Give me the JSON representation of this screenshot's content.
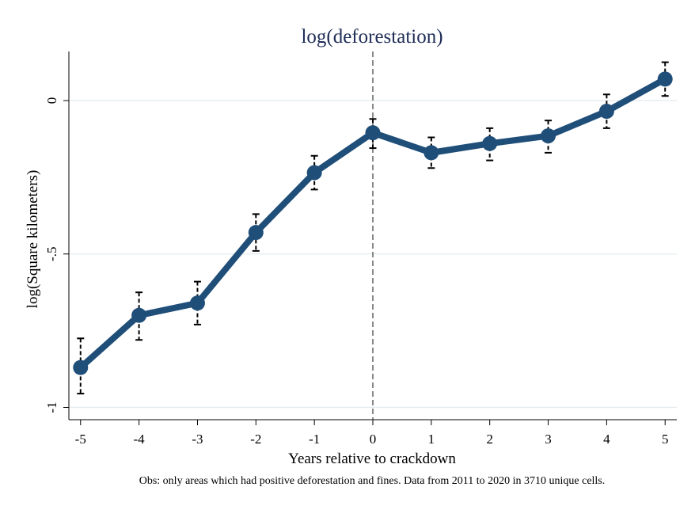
{
  "chart_data": {
    "type": "line",
    "title": "log(deforestation)",
    "xlabel": "Years relative to crackdown",
    "ylabel": "log(Square kilometers)",
    "note": "Obs: only areas which had positive deforestation and fines. Data from 2011 to 2020 in 3710 unique cells.",
    "x": [
      -5,
      -4,
      -3,
      -2,
      -1,
      0,
      1,
      2,
      3,
      4,
      5
    ],
    "x_tick_labels": [
      "-5",
      "-4",
      "-3",
      "-2",
      "-1",
      "0",
      "1",
      "2",
      "3",
      "4",
      "5"
    ],
    "y_ticks": [
      -1,
      -0.5,
      0
    ],
    "y_tick_labels": [
      "-1",
      "-.5",
      "0"
    ],
    "xlim": [
      -5.2,
      5.2
    ],
    "ylim": [
      -1.04,
      0.16
    ],
    "reference_line_x": 0,
    "grid": "horizontal",
    "series": [
      {
        "values": [
          -0.87,
          -0.7,
          -0.66,
          -0.43,
          -0.235,
          -0.105,
          -0.17,
          -0.14,
          -0.115,
          -0.035,
          0.07
        ],
        "ci_lower": [
          -0.955,
          -0.78,
          -0.73,
          -0.49,
          -0.29,
          -0.155,
          -0.22,
          -0.195,
          -0.17,
          -0.09,
          0.015
        ],
        "ci_upper": [
          -0.775,
          -0.625,
          -0.59,
          -0.37,
          -0.18,
          -0.06,
          -0.12,
          -0.09,
          -0.065,
          0.02,
          0.125
        ],
        "color": "#1f4e79"
      }
    ]
  }
}
